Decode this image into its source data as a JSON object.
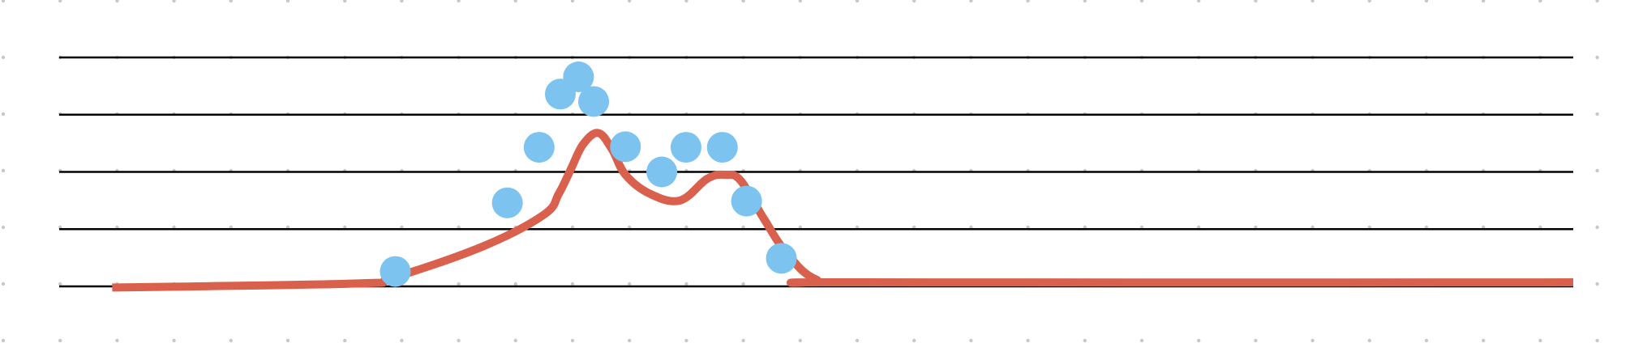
{
  "chart_data": {
    "type": "line",
    "title": "",
    "xlabel": "",
    "ylabel": "",
    "grid": true,
    "legend": "none",
    "xlim": [
      0,
      100
    ],
    "ylim": [
      0,
      4
    ],
    "gridlines_y": [
      0,
      1,
      2,
      3,
      4
    ],
    "series": [
      {
        "style": "smooth-line",
        "color": "#d9604c",
        "points": [
          [
            3.5,
            -0.02
          ],
          [
            19.5,
            0.05
          ],
          [
            22,
            0.15
          ],
          [
            28,
            0.7
          ],
          [
            32,
            1.25
          ],
          [
            33,
            1.62
          ],
          [
            33.8,
            2.05
          ],
          [
            34.6,
            2.48
          ],
          [
            35.6,
            2.68
          ],
          [
            36.5,
            2.4
          ],
          [
            37.4,
            1.95
          ],
          [
            39,
            1.62
          ],
          [
            41,
            1.5
          ],
          [
            42.8,
            1.88
          ],
          [
            44,
            1.95
          ],
          [
            45,
            1.85
          ],
          [
            46.5,
            1.2
          ],
          [
            48,
            0.6
          ],
          [
            50,
            0.12
          ],
          [
            53,
            0.07
          ],
          [
            100,
            0.07
          ]
        ]
      },
      {
        "style": "markers",
        "color": "#7cc3f0",
        "points": [
          [
            22.2,
            0.26
          ],
          [
            29.6,
            1.46
          ],
          [
            31.7,
            2.43
          ],
          [
            33.1,
            3.36
          ],
          [
            34.3,
            3.66
          ],
          [
            35.3,
            3.23
          ],
          [
            37.4,
            2.44
          ],
          [
            39.8,
            2.0
          ],
          [
            41.4,
            2.43
          ],
          [
            43.8,
            2.43
          ],
          [
            45.4,
            1.49
          ],
          [
            47.7,
            0.49
          ]
        ]
      }
    ]
  },
  "style": {
    "background": "#ffffff",
    "gridline_color": "#000000",
    "dot_color": "#c8c8c8"
  }
}
